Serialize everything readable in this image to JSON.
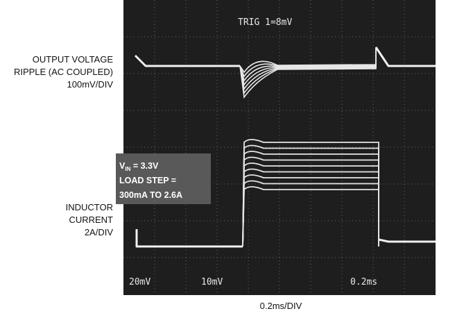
{
  "figure": {
    "left_labels": {
      "voltage": [
        "OUTPUT VOLTAGE",
        "RIPPLE (AC COUPLED)",
        "100mV/DIV"
      ],
      "current": [
        "INDUCTOR",
        "CURRENT",
        "2A/DIV"
      ]
    },
    "x_label": "0.2ms/DIV",
    "scope": {
      "trigger": "TRIG 1=8mV",
      "ch1_scale": "20mV",
      "ch2_scale": "10mV",
      "timebase": "0.2ms"
    },
    "conditions": {
      "vin": {
        "symbol": "V",
        "subscript": "IN",
        "text": " = 3.3V"
      },
      "lines": [
        "LOAD STEP =",
        "300mA TO 2.6A"
      ]
    }
  }
}
